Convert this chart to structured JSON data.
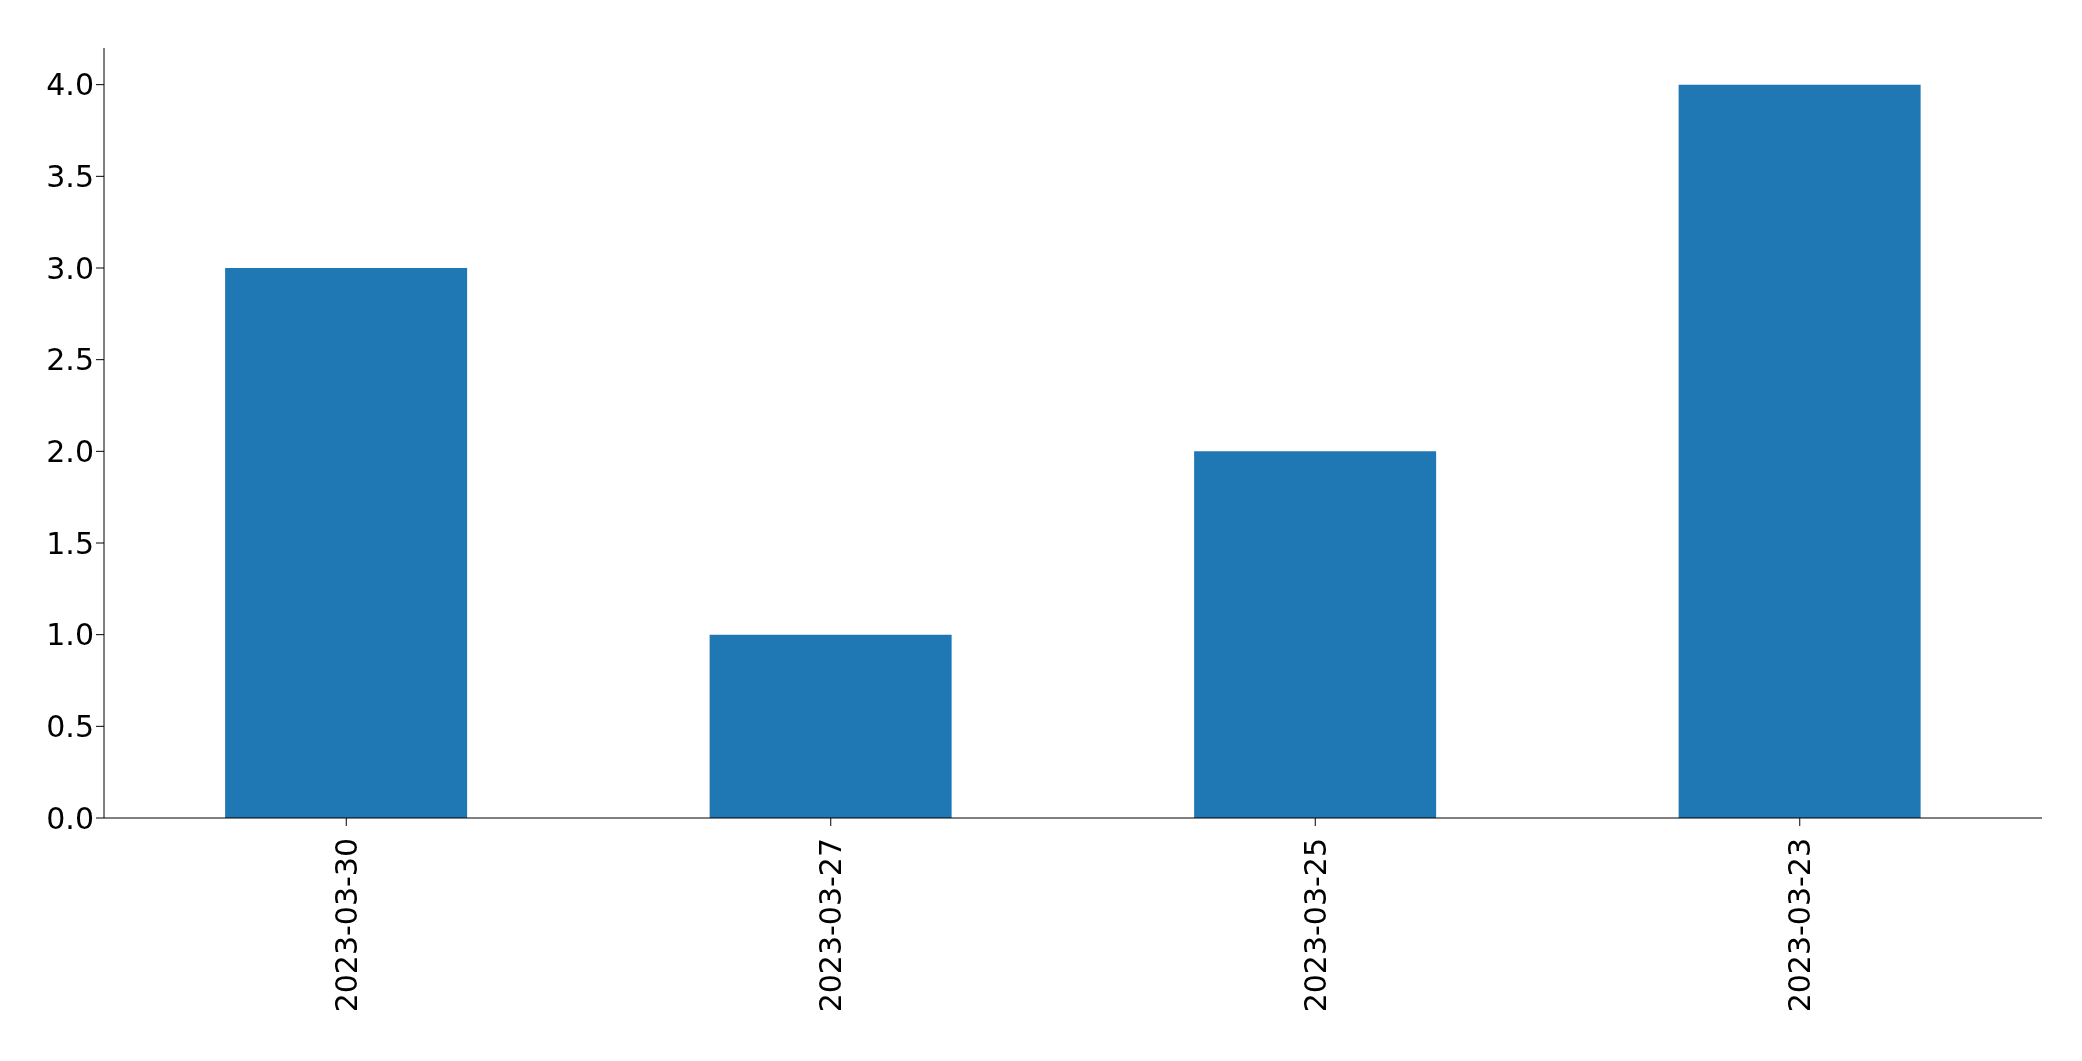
{
  "chart_data": {
    "type": "bar",
    "categories": [
      "2023-03-30",
      "2023-03-27",
      "2023-03-25",
      "2023-03-23"
    ],
    "values": [
      3,
      1,
      2,
      4
    ],
    "color": "#1f77b4",
    "ylim": [
      0,
      4.2
    ],
    "yticks": [
      {
        "value": 0,
        "label": "0.0"
      },
      {
        "value": 0.5,
        "label": "0.5"
      },
      {
        "value": 1,
        "label": "1.0"
      },
      {
        "value": 1.5,
        "label": "1.5"
      },
      {
        "value": 2,
        "label": "2.0"
      },
      {
        "value": 2.5,
        "label": "2.5"
      },
      {
        "value": 3,
        "label": "3.0"
      },
      {
        "value": 3.5,
        "label": "3.5"
      },
      {
        "value": 4,
        "label": "4.0"
      }
    ],
    "grid": false,
    "legend": false
  }
}
